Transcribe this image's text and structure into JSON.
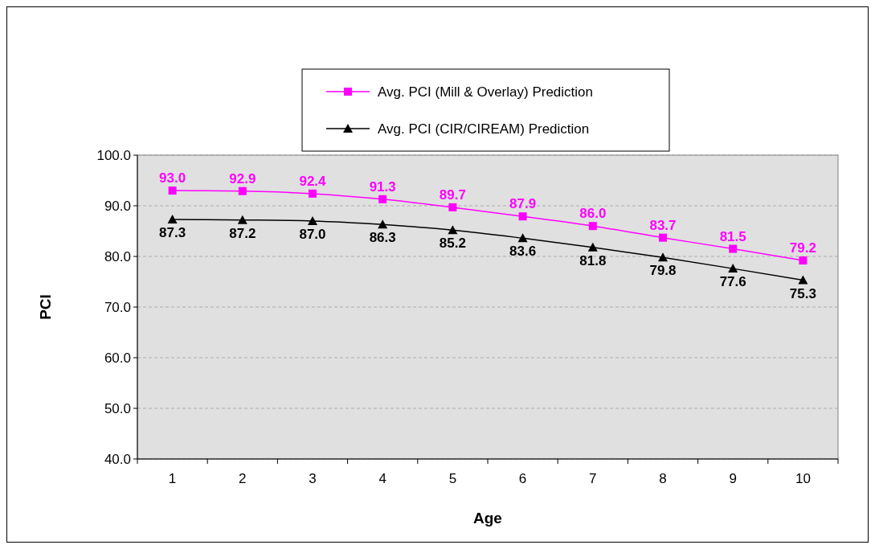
{
  "chart_data": {
    "type": "line",
    "xlabel": "Age",
    "ylabel": "PCI",
    "categories": [
      "1",
      "2",
      "3",
      "4",
      "5",
      "6",
      "7",
      "8",
      "9",
      "10"
    ],
    "ylim": [
      40,
      100
    ],
    "yticks": [
      {
        "value": 40,
        "label": "40.0"
      },
      {
        "value": 50,
        "label": "50.0"
      },
      {
        "value": 60,
        "label": "60.0"
      },
      {
        "value": 70,
        "label": "70.0"
      },
      {
        "value": 80,
        "label": "80.0"
      },
      {
        "value": 90,
        "label": "90.0"
      },
      {
        "value": 100,
        "label": "100.0"
      }
    ],
    "grid": "y",
    "legend": "top",
    "line_style": "solid",
    "series": [
      {
        "name": "Avg. PCI (Mill & Overlay) Prediction",
        "color": "#ff00ff",
        "marker": "square",
        "values": [
          93.0,
          92.9,
          92.4,
          91.3,
          89.7,
          87.9,
          86.0,
          83.7,
          81.5,
          79.2
        ],
        "value_labels": [
          "93.0",
          "92.9",
          "92.4",
          "91.3",
          "89.7",
          "87.9",
          "86.0",
          "83.7",
          "81.5",
          "79.2"
        ]
      },
      {
        "name": "Avg. PCI (CIR/CIREAM) Prediction",
        "color": "#000000",
        "marker": "triangle",
        "values": [
          87.3,
          87.2,
          87.0,
          86.3,
          85.2,
          83.6,
          81.8,
          79.8,
          77.6,
          75.3
        ],
        "value_labels": [
          "87.3",
          "87.2",
          "87.0",
          "86.3",
          "85.2",
          "83.6",
          "81.8",
          "79.8",
          "77.6",
          "75.3"
        ]
      }
    ]
  }
}
